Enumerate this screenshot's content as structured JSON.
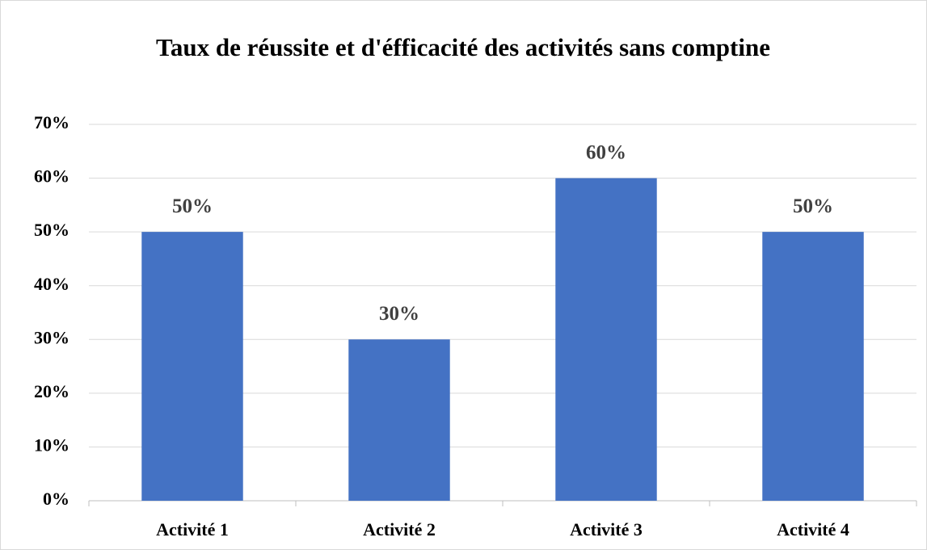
{
  "chart_data": {
    "type": "bar",
    "title": "Taux de réussite et d'éfficacité des activités sans comptine",
    "categories": [
      "Activité 1",
      "Activité 2",
      "Activité 3",
      "Activité 4"
    ],
    "values": [
      50,
      30,
      60,
      50
    ],
    "value_labels": [
      "50%",
      "30%",
      "60%",
      "50%"
    ],
    "color": "#4472c4",
    "ylim": [
      0,
      70
    ],
    "yticks": [
      {
        "value": 0,
        "label": "0%"
      },
      {
        "value": 10,
        "label": "10%"
      },
      {
        "value": 20,
        "label": "20%"
      },
      {
        "value": 30,
        "label": "30%"
      },
      {
        "value": 40,
        "label": "40%"
      },
      {
        "value": 50,
        "label": "50%"
      },
      {
        "value": 60,
        "label": "60%"
      },
      {
        "value": 70,
        "label": "70%"
      }
    ],
    "grid": true
  }
}
